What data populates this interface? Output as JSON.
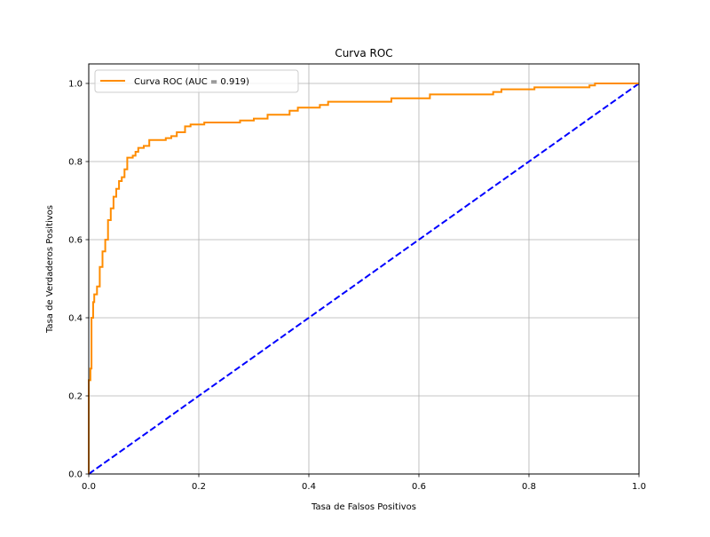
{
  "chart_data": {
    "type": "line",
    "title": "Curva ROC",
    "xlabel": "Tasa de Falsos Positivos",
    "ylabel": "Tasa de Verdaderos Positivos",
    "xlim": [
      0.0,
      1.0
    ],
    "ylim": [
      0.0,
      1.05
    ],
    "xticks": [
      "0.0",
      "0.2",
      "0.4",
      "0.6",
      "0.8",
      "1.0"
    ],
    "yticks": [
      "0.0",
      "0.2",
      "0.4",
      "0.6",
      "0.8",
      "1.0"
    ],
    "grid": true,
    "legend_position": "top-left",
    "series": [
      {
        "name": "Curva ROC (AUC = 0.919)",
        "color": "#ff8c00",
        "style": "solid",
        "step": true,
        "points": [
          [
            0.0,
            0.0
          ],
          [
            0.0,
            0.24
          ],
          [
            0.003,
            0.24
          ],
          [
            0.003,
            0.27
          ],
          [
            0.005,
            0.27
          ],
          [
            0.005,
            0.4
          ],
          [
            0.008,
            0.4
          ],
          [
            0.008,
            0.44
          ],
          [
            0.01,
            0.44
          ],
          [
            0.01,
            0.46
          ],
          [
            0.015,
            0.46
          ],
          [
            0.015,
            0.48
          ],
          [
            0.02,
            0.48
          ],
          [
            0.02,
            0.53
          ],
          [
            0.025,
            0.53
          ],
          [
            0.025,
            0.57
          ],
          [
            0.03,
            0.57
          ],
          [
            0.03,
            0.6
          ],
          [
            0.035,
            0.6
          ],
          [
            0.035,
            0.65
          ],
          [
            0.04,
            0.65
          ],
          [
            0.04,
            0.68
          ],
          [
            0.045,
            0.68
          ],
          [
            0.045,
            0.71
          ],
          [
            0.05,
            0.71
          ],
          [
            0.05,
            0.73
          ],
          [
            0.055,
            0.73
          ],
          [
            0.055,
            0.75
          ],
          [
            0.06,
            0.75
          ],
          [
            0.06,
            0.76
          ],
          [
            0.065,
            0.76
          ],
          [
            0.065,
            0.78
          ],
          [
            0.07,
            0.78
          ],
          [
            0.07,
            0.81
          ],
          [
            0.08,
            0.81
          ],
          [
            0.08,
            0.815
          ],
          [
            0.085,
            0.815
          ],
          [
            0.085,
            0.825
          ],
          [
            0.09,
            0.825
          ],
          [
            0.09,
            0.835
          ],
          [
            0.1,
            0.835
          ],
          [
            0.1,
            0.84
          ],
          [
            0.11,
            0.84
          ],
          [
            0.11,
            0.855
          ],
          [
            0.14,
            0.855
          ],
          [
            0.14,
            0.86
          ],
          [
            0.15,
            0.86
          ],
          [
            0.15,
            0.865
          ],
          [
            0.16,
            0.865
          ],
          [
            0.16,
            0.875
          ],
          [
            0.175,
            0.875
          ],
          [
            0.175,
            0.89
          ],
          [
            0.185,
            0.89
          ],
          [
            0.185,
            0.895
          ],
          [
            0.21,
            0.895
          ],
          [
            0.21,
            0.9
          ],
          [
            0.275,
            0.9
          ],
          [
            0.275,
            0.905
          ],
          [
            0.3,
            0.905
          ],
          [
            0.3,
            0.91
          ],
          [
            0.325,
            0.91
          ],
          [
            0.325,
            0.92
          ],
          [
            0.365,
            0.92
          ],
          [
            0.365,
            0.93
          ],
          [
            0.38,
            0.93
          ],
          [
            0.38,
            0.938
          ],
          [
            0.42,
            0.938
          ],
          [
            0.42,
            0.945
          ],
          [
            0.435,
            0.945
          ],
          [
            0.435,
            0.953
          ],
          [
            0.55,
            0.953
          ],
          [
            0.55,
            0.962
          ],
          [
            0.62,
            0.962
          ],
          [
            0.62,
            0.972
          ],
          [
            0.735,
            0.972
          ],
          [
            0.735,
            0.978
          ],
          [
            0.75,
            0.978
          ],
          [
            0.75,
            0.985
          ],
          [
            0.81,
            0.985
          ],
          [
            0.81,
            0.99
          ],
          [
            0.91,
            0.99
          ],
          [
            0.91,
            0.995
          ],
          [
            0.92,
            0.995
          ],
          [
            0.92,
            1.0
          ],
          [
            1.0,
            1.0
          ]
        ]
      },
      {
        "name": "",
        "color": "#0000ff",
        "style": "dashed",
        "step": false,
        "points": [
          [
            0.0,
            0.0
          ],
          [
            1.0,
            1.0
          ]
        ]
      }
    ]
  }
}
